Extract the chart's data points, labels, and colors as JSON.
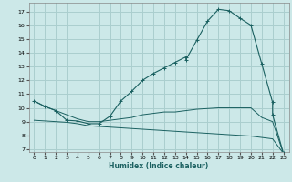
{
  "xlabel": "Humidex (Indice chaleur)",
  "bg_color": "#cce8e8",
  "grid_color": "#aacece",
  "line_color": "#1a6060",
  "xlim": [
    -0.5,
    23.5
  ],
  "ylim": [
    6.8,
    17.6
  ],
  "xticks": [
    0,
    1,
    2,
    3,
    4,
    5,
    6,
    7,
    8,
    9,
    10,
    11,
    12,
    13,
    14,
    15,
    16,
    17,
    18,
    19,
    20,
    21,
    22,
    23
  ],
  "yticks": [
    7,
    8,
    9,
    10,
    11,
    12,
    13,
    14,
    15,
    16,
    17
  ],
  "curve1_x": [
    0,
    1,
    2,
    3,
    4,
    5,
    6,
    7,
    8,
    9,
    10,
    11,
    12,
    13,
    14,
    14,
    15,
    16,
    17,
    18,
    19,
    20,
    21,
    22,
    22,
    23
  ],
  "curve1_y": [
    10.5,
    10.1,
    9.8,
    9.1,
    9.05,
    8.85,
    8.85,
    9.4,
    10.5,
    11.2,
    12.0,
    12.5,
    12.9,
    13.3,
    13.7,
    13.5,
    14.9,
    16.3,
    17.15,
    17.05,
    16.5,
    16.0,
    13.2,
    10.4,
    9.5,
    6.7
  ],
  "curve2_x": [
    0,
    1,
    2,
    3,
    4,
    5,
    6,
    7,
    8,
    9,
    10,
    11,
    12,
    13,
    14,
    15,
    16,
    17,
    18,
    19,
    20,
    21,
    22,
    23
  ],
  "curve2_y": [
    10.5,
    10.1,
    9.8,
    9.5,
    9.2,
    9.0,
    9.0,
    9.1,
    9.2,
    9.3,
    9.5,
    9.6,
    9.7,
    9.7,
    9.8,
    9.9,
    9.95,
    10.0,
    10.0,
    10.0,
    10.0,
    9.3,
    9.0,
    6.7
  ],
  "curve3_x": [
    0,
    1,
    2,
    3,
    4,
    5,
    6,
    7,
    8,
    9,
    10,
    11,
    12,
    13,
    14,
    15,
    16,
    17,
    18,
    19,
    20,
    21,
    22,
    23
  ],
  "curve3_y": [
    9.1,
    9.05,
    9.0,
    8.95,
    8.85,
    8.7,
    8.65,
    8.6,
    8.55,
    8.5,
    8.45,
    8.4,
    8.35,
    8.3,
    8.25,
    8.2,
    8.15,
    8.1,
    8.05,
    8.0,
    7.95,
    7.85,
    7.75,
    6.7
  ]
}
